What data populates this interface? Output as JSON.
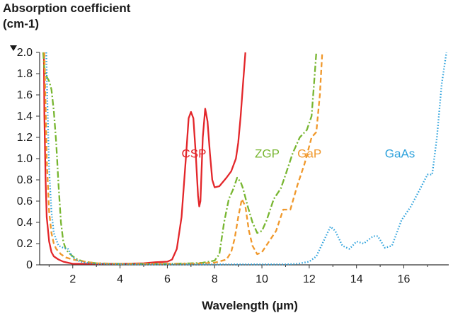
{
  "chart_data": {
    "type": "line",
    "ylabel_line1": "Absorption coefficient",
    "ylabel_line2": "(cm-1)",
    "xlabel": "Wavelength (µm)",
    "xlim": [
      0.6,
      17.9
    ],
    "ylim": [
      0,
      2.0
    ],
    "xticks": [
      2,
      4,
      6,
      8,
      10,
      12,
      14,
      16
    ],
    "yticks": [
      0,
      0.2,
      0.4,
      0.6,
      0.8,
      1.0,
      1.2,
      1.4,
      1.6,
      1.8,
      2.0
    ],
    "ytick_labels": [
      "0",
      "0.2",
      "0.4",
      "0.6",
      "0.8",
      "1.0",
      "1.2",
      "1.4",
      "1.6",
      "1.8",
      "2.0"
    ],
    "series": [
      {
        "name": "CSP",
        "color": "#e3262a",
        "style": "solid",
        "label_at": [
          6.6,
          1.05
        ],
        "points": [
          [
            0.78,
            2.0
          ],
          [
            0.8,
            1.4
          ],
          [
            0.85,
            0.8
          ],
          [
            0.9,
            0.45
          ],
          [
            1.0,
            0.22
          ],
          [
            1.1,
            0.12
          ],
          [
            1.2,
            0.08
          ],
          [
            1.4,
            0.05
          ],
          [
            1.6,
            0.03
          ],
          [
            1.8,
            0.02
          ],
          [
            2.0,
            0.01
          ],
          [
            2.5,
            0.01
          ],
          [
            3.0,
            0.01
          ],
          [
            4.0,
            0.01
          ],
          [
            5.0,
            0.015
          ],
          [
            5.5,
            0.025
          ],
          [
            6.0,
            0.03
          ],
          [
            6.2,
            0.05
          ],
          [
            6.4,
            0.15
          ],
          [
            6.6,
            0.45
          ],
          [
            6.8,
            1.05
          ],
          [
            6.9,
            1.38
          ],
          [
            7.0,
            1.44
          ],
          [
            7.1,
            1.38
          ],
          [
            7.2,
            1.05
          ],
          [
            7.3,
            0.65
          ],
          [
            7.35,
            0.55
          ],
          [
            7.4,
            0.6
          ],
          [
            7.5,
            1.2
          ],
          [
            7.6,
            1.47
          ],
          [
            7.7,
            1.35
          ],
          [
            7.8,
            1.05
          ],
          [
            7.9,
            0.8
          ],
          [
            8.0,
            0.73
          ],
          [
            8.2,
            0.74
          ],
          [
            8.5,
            0.82
          ],
          [
            8.7,
            0.88
          ],
          [
            8.9,
            1.0
          ],
          [
            9.0,
            1.15
          ],
          [
            9.1,
            1.4
          ],
          [
            9.2,
            1.7
          ],
          [
            9.3,
            2.0
          ]
        ]
      },
      {
        "name": "ZGP",
        "color": "#78b631",
        "style": "dashdot",
        "label_at": [
          9.7,
          1.05
        ],
        "points": [
          [
            0.75,
            2.0
          ],
          [
            0.8,
            1.85
          ],
          [
            0.9,
            1.77
          ],
          [
            1.0,
            1.73
          ],
          [
            1.1,
            1.65
          ],
          [
            1.2,
            1.45
          ],
          [
            1.3,
            1.15
          ],
          [
            1.4,
            0.75
          ],
          [
            1.5,
            0.4
          ],
          [
            1.6,
            0.22
          ],
          [
            1.7,
            0.15
          ],
          [
            1.8,
            0.12
          ],
          [
            1.9,
            0.1
          ],
          [
            2.0,
            0.08
          ],
          [
            2.2,
            0.05
          ],
          [
            2.5,
            0.03
          ],
          [
            3.0,
            0.015
          ],
          [
            4.0,
            0.01
          ],
          [
            5.0,
            0.01
          ],
          [
            6.0,
            0.01
          ],
          [
            7.0,
            0.015
          ],
          [
            7.5,
            0.02
          ],
          [
            8.0,
            0.04
          ],
          [
            8.2,
            0.1
          ],
          [
            8.4,
            0.4
          ],
          [
            8.6,
            0.62
          ],
          [
            8.8,
            0.72
          ],
          [
            8.95,
            0.82
          ],
          [
            9.1,
            0.78
          ],
          [
            9.2,
            0.72
          ],
          [
            9.4,
            0.55
          ],
          [
            9.6,
            0.4
          ],
          [
            9.8,
            0.3
          ],
          [
            10.0,
            0.32
          ],
          [
            10.2,
            0.42
          ],
          [
            10.5,
            0.62
          ],
          [
            10.8,
            0.72
          ],
          [
            11.0,
            0.85
          ],
          [
            11.3,
            1.05
          ],
          [
            11.6,
            1.2
          ],
          [
            11.9,
            1.27
          ],
          [
            12.1,
            1.4
          ],
          [
            12.2,
            1.7
          ],
          [
            12.3,
            2.0
          ]
        ]
      },
      {
        "name": "GaP",
        "color": "#f0982b",
        "style": "dashed",
        "label_at": [
          11.5,
          1.05
        ],
        "points": [
          [
            0.8,
            2.0
          ],
          [
            0.85,
            1.5
          ],
          [
            0.9,
            1.0
          ],
          [
            1.0,
            0.5
          ],
          [
            1.1,
            0.3
          ],
          [
            1.2,
            0.2
          ],
          [
            1.3,
            0.15
          ],
          [
            1.5,
            0.1
          ],
          [
            1.7,
            0.07
          ],
          [
            2.0,
            0.05
          ],
          [
            2.5,
            0.03
          ],
          [
            3.0,
            0.015
          ],
          [
            4.0,
            0.01
          ],
          [
            5.0,
            0.01
          ],
          [
            6.0,
            0.01
          ],
          [
            7.0,
            0.01
          ],
          [
            8.0,
            0.02
          ],
          [
            8.5,
            0.05
          ],
          [
            8.7,
            0.12
          ],
          [
            8.85,
            0.25
          ],
          [
            9.0,
            0.45
          ],
          [
            9.15,
            0.62
          ],
          [
            9.3,
            0.55
          ],
          [
            9.45,
            0.32
          ],
          [
            9.6,
            0.18
          ],
          [
            9.8,
            0.1
          ],
          [
            10.0,
            0.12
          ],
          [
            10.3,
            0.22
          ],
          [
            10.6,
            0.32
          ],
          [
            10.9,
            0.52
          ],
          [
            11.2,
            0.52
          ],
          [
            11.5,
            0.75
          ],
          [
            11.8,
            0.95
          ],
          [
            12.1,
            1.2
          ],
          [
            12.3,
            1.25
          ],
          [
            12.45,
            1.6
          ],
          [
            12.55,
            2.0
          ]
        ]
      },
      {
        "name": "GaAs",
        "color": "#2ea2dc",
        "style": "dotted",
        "label_at": [
          15.2,
          1.05
        ],
        "points": [
          [
            0.88,
            2.0
          ],
          [
            0.92,
            1.6
          ],
          [
            1.0,
            0.9
          ],
          [
            1.1,
            0.5
          ],
          [
            1.2,
            0.3
          ],
          [
            1.4,
            0.18
          ],
          [
            1.6,
            0.16
          ],
          [
            1.8,
            0.15
          ],
          [
            2.0,
            0.07
          ],
          [
            2.2,
            0.04
          ],
          [
            2.5,
            0.02
          ],
          [
            3.0,
            0.01
          ],
          [
            5.0,
            0.005
          ],
          [
            8.0,
            0.005
          ],
          [
            10.0,
            0.005
          ],
          [
            11.0,
            0.005
          ],
          [
            11.5,
            0.01
          ],
          [
            12.0,
            0.03
          ],
          [
            12.3,
            0.08
          ],
          [
            12.6,
            0.22
          ],
          [
            12.9,
            0.36
          ],
          [
            13.1,
            0.32
          ],
          [
            13.4,
            0.18
          ],
          [
            13.7,
            0.15
          ],
          [
            14.0,
            0.22
          ],
          [
            14.3,
            0.2
          ],
          [
            14.7,
            0.27
          ],
          [
            14.9,
            0.27
          ],
          [
            15.2,
            0.16
          ],
          [
            15.5,
            0.18
          ],
          [
            15.9,
            0.42
          ],
          [
            16.3,
            0.55
          ],
          [
            16.7,
            0.72
          ],
          [
            17.0,
            0.85
          ],
          [
            17.2,
            0.85
          ],
          [
            17.4,
            1.2
          ],
          [
            17.6,
            1.7
          ],
          [
            17.8,
            2.0
          ]
        ]
      }
    ]
  }
}
